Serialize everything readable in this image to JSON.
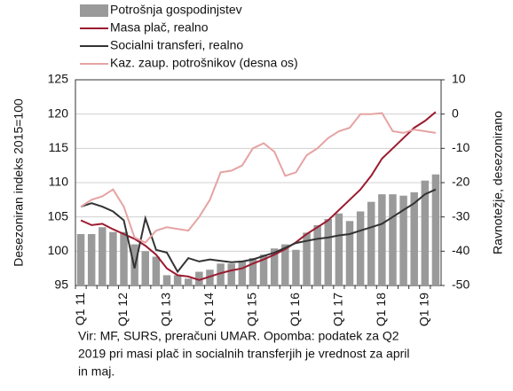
{
  "chart_data": {
    "type": "bar-line",
    "categories": [
      "Q1 11",
      null,
      null,
      null,
      "Q1 12",
      null,
      null,
      null,
      "Q1 13",
      null,
      null,
      null,
      "Q1 14",
      null,
      null,
      null,
      "Q1 15",
      null,
      null,
      null,
      "Q1 16",
      null,
      null,
      null,
      "Q1 17",
      null,
      null,
      null,
      "Q1 18",
      null,
      null,
      null,
      "Q1 19",
      null
    ],
    "series": [
      {
        "name": "Potrošnja gospodinjstev",
        "type": "bar",
        "color": "#9a9a9a",
        "values": [
          102.5,
          102.5,
          103.5,
          102.8,
          102.8,
          101,
          100,
          99.2,
          96.5,
          96.5,
          96,
          97,
          97.3,
          98.2,
          98.2,
          98.5,
          99,
          99.5,
          100.4,
          101,
          100.2,
          102.7,
          103.8,
          104.7,
          105.5,
          104.4,
          105.8,
          107.2,
          108.3,
          108.3,
          108.1,
          108.6,
          110.3,
          111.2
        ]
      },
      {
        "name": "Masa plač, realno",
        "type": "line",
        "color": "#9b1b30",
        "values": [
          104.5,
          103.8,
          104,
          103.2,
          102.5,
          101.8,
          100.8,
          99.5,
          97.5,
          96.5,
          96.3,
          95.8,
          96.3,
          96.8,
          97.2,
          97.5,
          98.2,
          98.8,
          99.5,
          100.3,
          101.3,
          102.5,
          103.5,
          104.5,
          106,
          107.5,
          109,
          111,
          113.5,
          115,
          116.5,
          118,
          119,
          120.3
        ]
      },
      {
        "name": "Socialni transferi, realno",
        "type": "line",
        "color": "#333333",
        "values": [
          106.5,
          107,
          106.5,
          105.8,
          104.5,
          97.5,
          104.8,
          100.2,
          99.8,
          97,
          99,
          98.5,
          98.8,
          98.6,
          98.4,
          98.5,
          98.8,
          99.3,
          99.8,
          100.5,
          101.2,
          101.5,
          101.8,
          102,
          102.3,
          102.5,
          103,
          103.5,
          104,
          105,
          106,
          107,
          108.3,
          109
        ]
      },
      {
        "name": "Kaz. zaup. potrošnikov (desna os)",
        "type": "line",
        "axis": "y2",
        "color": "#e6a3a3",
        "values": [
          -27,
          -25,
          -24,
          -22,
          -27,
          -36,
          -37.5,
          -34,
          -33,
          -33.5,
          -34,
          -30,
          -25,
          -17,
          -16.5,
          -15,
          -10,
          -8.5,
          -11,
          -18,
          -17,
          -12,
          -10,
          -7,
          -5,
          -4,
          0,
          0,
          0.3,
          -5,
          -5.5,
          -4.5,
          -5,
          -5.5
        ]
      }
    ],
    "ylabel": "Desezoniran indeks 2015=100",
    "y2label": "Ravnotežje, desezonirano",
    "ylim": [
      95,
      125
    ],
    "yticks": [
      95,
      100,
      105,
      110,
      115,
      120,
      125
    ],
    "y2lim": [
      -50,
      10
    ],
    "y2ticks": [
      -50,
      -40,
      -30,
      -20,
      -10,
      0,
      10
    ],
    "grid": true,
    "note": [
      "Vir: MF, SURS, preračuni UMAR. Opomba: podatek za Q2",
      "2019 pri masi plač in socialnih transferjih je vrednost za april",
      "in maj."
    ]
  }
}
